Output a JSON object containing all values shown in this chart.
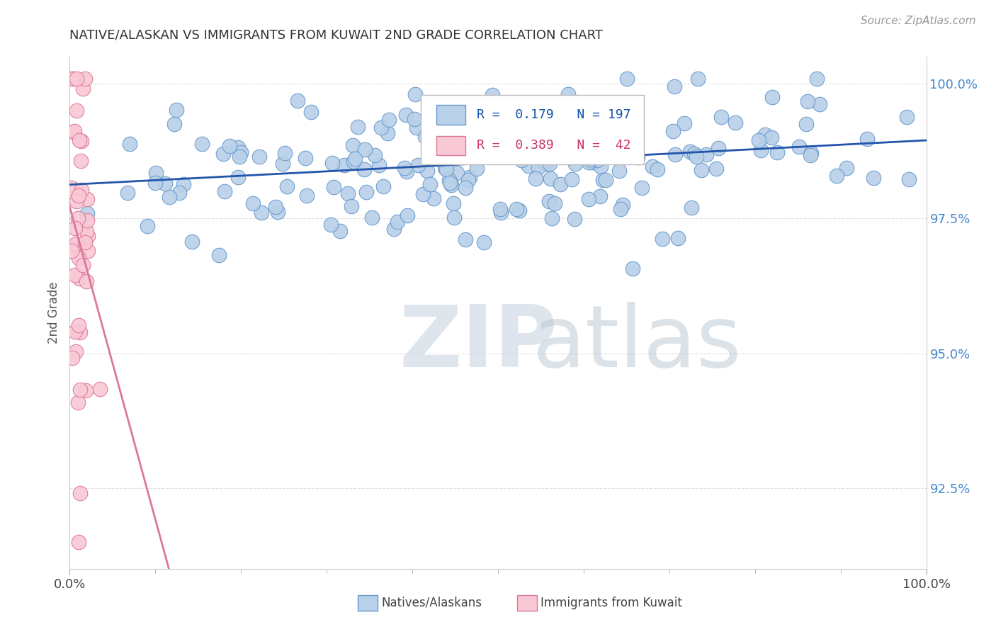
{
  "title": "NATIVE/ALASKAN VS IMMIGRANTS FROM KUWAIT 2ND GRADE CORRELATION CHART",
  "source_text": "Source: ZipAtlas.com",
  "ylabel": "2nd Grade",
  "xlim": [
    0.0,
    1.0
  ],
  "ylim": [
    0.91,
    1.005
  ],
  "yticks": [
    0.925,
    0.95,
    0.975,
    1.0
  ],
  "ytick_labels": [
    "92.5%",
    "95.0%",
    "97.5%",
    "100.0%"
  ],
  "xtick_labels": [
    "0.0%",
    "100.0%"
  ],
  "xticks": [
    0.0,
    1.0
  ],
  "series1_color": "#b8d0e8",
  "series1_edge_color": "#6699cc",
  "series1_label": "Natives/Alaskans",
  "series1_R": 0.179,
  "series1_N": 197,
  "series1_line_color": "#2255aa",
  "series2_color": "#f8c8d4",
  "series2_edge_color": "#dd7799",
  "series2_label": "Immigrants from Kuwait",
  "series2_R": 0.389,
  "series2_N": 42,
  "series2_line_color": "#dd7799",
  "background_color": "#ffffff",
  "grid_color": "#dddddd",
  "watermark_zip_color": "#c8d4e0",
  "watermark_atlas_color": "#b0c0cc"
}
